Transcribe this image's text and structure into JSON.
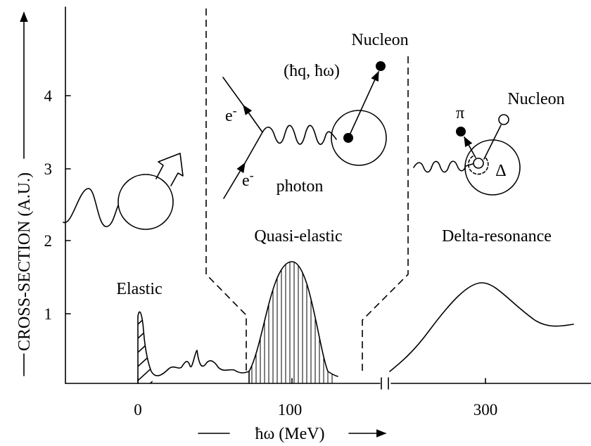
{
  "y_axis": {
    "label": "CROSS-SECTION (A.U.)",
    "ticks": [
      "1",
      "2",
      "3",
      "4"
    ]
  },
  "x_axis": {
    "label": "ħω (MeV)",
    "ticks": [
      "0",
      "100",
      "300"
    ]
  },
  "regions": {
    "elastic": "Elastic",
    "quasi_elastic": "Quasi-elastic",
    "delta": "Delta-resonance"
  },
  "inset_quasi": {
    "electron_in": "e",
    "electron_out": "e",
    "superscript": "-",
    "photon": "photon",
    "momentum": "(ħq, ħω)",
    "nucleon": "Nucleon"
  },
  "inset_delta": {
    "pion": "π",
    "nucleon": "Nucleon",
    "delta": "Δ"
  }
}
